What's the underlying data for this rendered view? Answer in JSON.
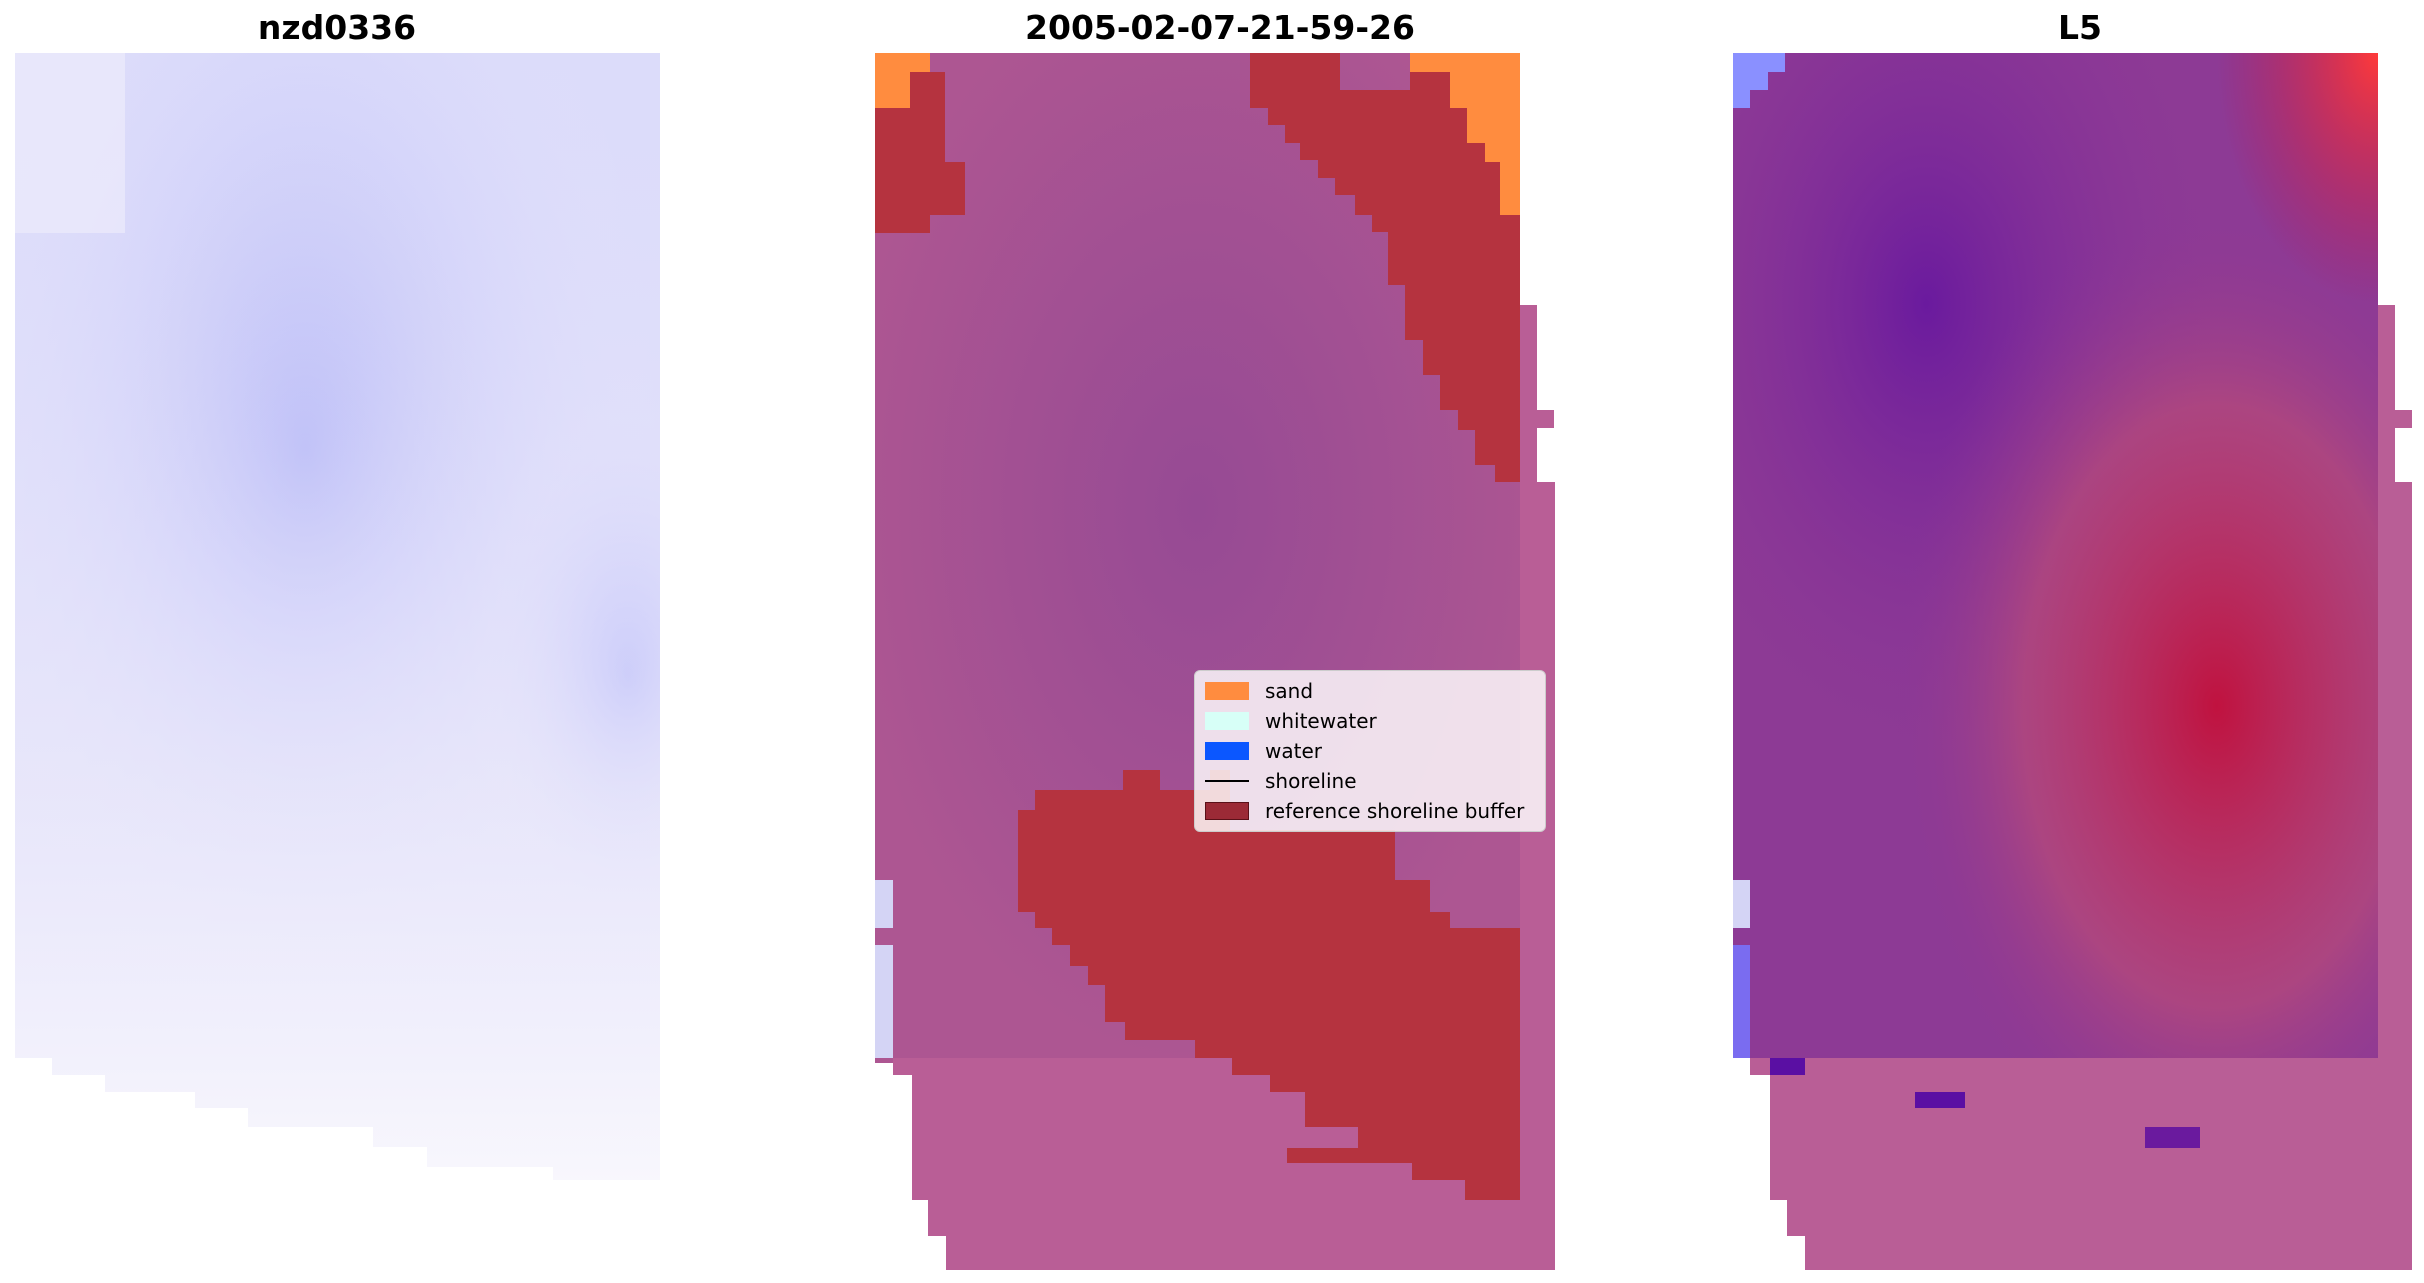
{
  "panels": [
    {
      "title": "nzd0336"
    },
    {
      "title": "2005-02-07-21-59-26"
    },
    {
      "title": "L5"
    }
  ],
  "legend": {
    "items": [
      {
        "label": "sand",
        "color": "#ff8c3f",
        "kind": "patch"
      },
      {
        "label": "whitewater",
        "color": "#d7fff7",
        "kind": "patch"
      },
      {
        "label": "water",
        "color": "#0b57ff",
        "kind": "patch"
      },
      {
        "label": "shoreline",
        "color": "#000000",
        "kind": "line"
      },
      {
        "label": "reference shoreline buffer",
        "color": "#9b2a36",
        "kind": "patch"
      }
    ]
  },
  "colors": {
    "panel1_base": "#e3e1fb",
    "panel1_dark": "#b0b2f8",
    "panel2_base": "#a6508f",
    "panel2_light": "#b85d95",
    "buffer": "#b5333f",
    "panel3_purple": "#7b2596",
    "panel3_red": "#c0123f"
  }
}
